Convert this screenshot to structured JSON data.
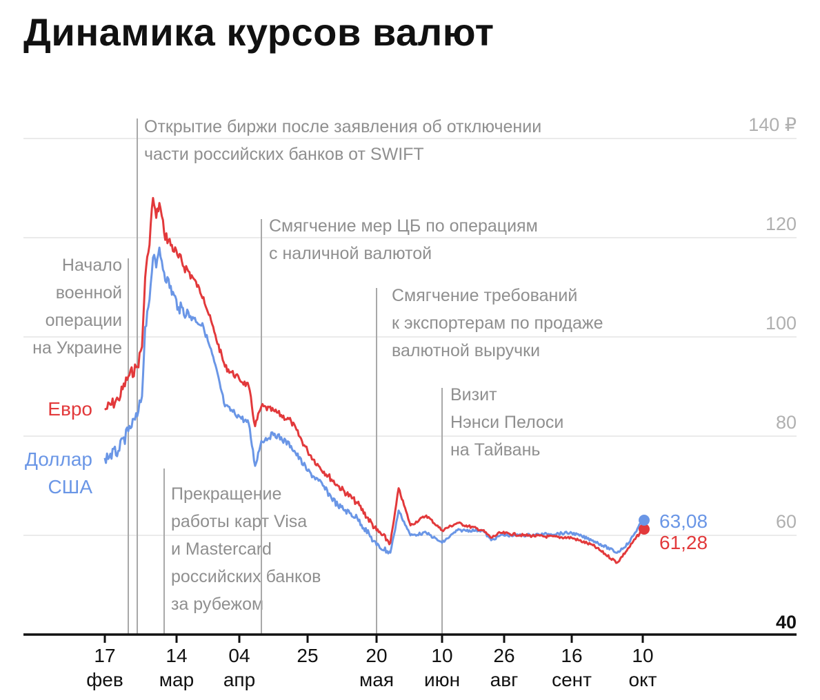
{
  "title": "Динамика курсов валют",
  "colors": {
    "euro": "#e2393b",
    "usd": "#6a96e6",
    "grid": "#e4e4e4",
    "event": "#a8a8a8",
    "axis": "#111111"
  },
  "chart_data": {
    "type": "line",
    "title": "Динамика курсов валют",
    "y_ticks": [
      "140 ₽",
      "120",
      "100",
      "80",
      "60",
      "40"
    ],
    "ylim": [
      40,
      140
    ],
    "x_ticks": [
      {
        "day": "17",
        "month": "фев"
      },
      {
        "day": "14",
        "month": "мар"
      },
      {
        "day": "04",
        "month": "апр"
      },
      {
        "day": "25",
        "month": ""
      },
      {
        "day": "20",
        "month": "мая"
      },
      {
        "day": "10",
        "month": "июн"
      },
      {
        "day": "26",
        "month": "авг"
      },
      {
        "day": "16",
        "month": "сент"
      },
      {
        "day": "10",
        "month": "окт"
      }
    ],
    "series": [
      {
        "name": "Евро",
        "label_lines": [
          "Евро"
        ],
        "end_value": 61.28,
        "end_label": "61,28",
        "points": [
          [
            "17 фев",
            85.3
          ],
          [
            "21 фев",
            87.4
          ],
          [
            "24 фев",
            92.0
          ],
          [
            "25 фев",
            94.0
          ],
          [
            "28 фев",
            98.0
          ],
          [
            "02 мар",
            112.0
          ],
          [
            "04 мар",
            117.0
          ],
          [
            "07 мар",
            128.0
          ],
          [
            "09 мар",
            124.0
          ],
          [
            "11 мар",
            127.0
          ],
          [
            "14 мар",
            121.0
          ],
          [
            "18 мар",
            116.0
          ],
          [
            "22 мар",
            112.0
          ],
          [
            "25 мар",
            108.0
          ],
          [
            "28 мар",
            101.0
          ],
          [
            "31 мар",
            94.0
          ],
          [
            "04 апр",
            91.5
          ],
          [
            "07 апр",
            90.0
          ],
          [
            "09 апр",
            82.0
          ],
          [
            "11 апр",
            86.0
          ],
          [
            "15 апр",
            85.0
          ],
          [
            "20 апр",
            83.0
          ],
          [
            "25 апр",
            77.0
          ],
          [
            "29 апр",
            74.0
          ],
          [
            "06 мая",
            70.0
          ],
          [
            "13 мая",
            66.5
          ],
          [
            "20 мая",
            61.0
          ],
          [
            "23 мая",
            58.5
          ],
          [
            "26 мая",
            63.0
          ],
          [
            "30 мая",
            69.5
          ],
          [
            "02 июн",
            62.0
          ],
          [
            "06 июн",
            64.0
          ],
          [
            "10 июн",
            61.0
          ],
          [
            "16 июн",
            62.5
          ],
          [
            "26 июн",
            61.0
          ],
          [
            "20 июл",
            59.5
          ],
          [
            "15 авг",
            60.5
          ],
          [
            "01 сент",
            60.0
          ],
          [
            "16 сент",
            59.5
          ],
          [
            "22 сент",
            58.0
          ],
          [
            "29 сент",
            54.5
          ],
          [
            "04 окт",
            57.5
          ],
          [
            "10 окт",
            61.28
          ]
        ]
      },
      {
        "name": "Доллар США",
        "label_lines": [
          "Доллар",
          "США"
        ],
        "end_value": 63.08,
        "end_label": "63,08",
        "points": [
          [
            "17 фев",
            75.6
          ],
          [
            "21 фев",
            77.0
          ],
          [
            "24 фев",
            81.0
          ],
          [
            "25 фев",
            84.0
          ],
          [
            "28 фев",
            88.0
          ],
          [
            "02 мар",
            102.0
          ],
          [
            "04 мар",
            106.0
          ],
          [
            "07 мар",
            116.0
          ],
          [
            "09 мар",
            114.0
          ],
          [
            "11 мар",
            118.0
          ],
          [
            "14 мар",
            113.0
          ],
          [
            "18 мар",
            106.0
          ],
          [
            "22 мар",
            104.0
          ],
          [
            "25 мар",
            102.0
          ],
          [
            "28 мар",
            95.0
          ],
          [
            "31 мар",
            86.0
          ],
          [
            "04 апр",
            84.0
          ],
          [
            "07 апр",
            82.5
          ],
          [
            "09 апр",
            74.0
          ],
          [
            "11 апр",
            79.0
          ],
          [
            "15 апр",
            80.5
          ],
          [
            "20 апр",
            78.0
          ],
          [
            "25 апр",
            73.0
          ],
          [
            "29 апр",
            71.0
          ],
          [
            "06 мая",
            66.0
          ],
          [
            "13 мая",
            63.5
          ],
          [
            "20 мая",
            58.0
          ],
          [
            "23 мая",
            56.5
          ],
          [
            "26 мая",
            60.0
          ],
          [
            "30 мая",
            65.0
          ],
          [
            "02 июн",
            60.0
          ],
          [
            "06 июн",
            60.5
          ],
          [
            "10 июн",
            58.5
          ],
          [
            "16 июн",
            61.0
          ],
          [
            "26 июн",
            61.0
          ],
          [
            "20 июл",
            59.0
          ],
          [
            "15 авг",
            60.0
          ],
          [
            "01 сент",
            60.0
          ],
          [
            "16 сент",
            60.5
          ],
          [
            "22 сент",
            59.0
          ],
          [
            "29 сент",
            56.5
          ],
          [
            "04 окт",
            58.5
          ],
          [
            "10 окт",
            63.08
          ]
        ]
      }
    ],
    "events": [
      {
        "date": "24 фев",
        "lines": [
          "Начало",
          "военной",
          "операции",
          "на Украине"
        ]
      },
      {
        "date": "25 фев",
        "lines": [
          "Открытие биржи после заявления об отключении",
          "части российских банков от SWIFT"
        ]
      },
      {
        "date": "14 мар",
        "lines": [
          "Прекращение",
          "работы карт Visa",
          "и Mastercard",
          "российских банков",
          "за рубежом"
        ]
      },
      {
        "date": "11 апр",
        "lines": [
          "Смягчение мер ЦБ по операциям",
          "с наличной валютой"
        ]
      },
      {
        "date": "20 мая",
        "lines": [
          "Смягчение требований",
          "к экспортерам по продаже",
          "валютной выручки"
        ]
      },
      {
        "date": "10 июн",
        "lines": [
          "Визит",
          "Нэнси Пелоси",
          "на Тайвань"
        ]
      }
    ]
  }
}
